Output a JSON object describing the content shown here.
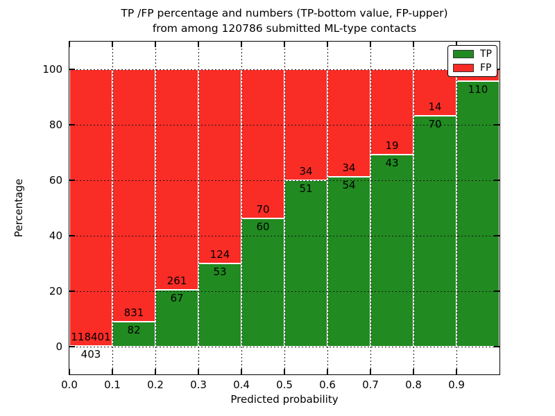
{
  "title": {
    "line1": "TP /FP percentage and numbers (TP-bottom value, FP-upper)",
    "line2": "from among 120786 submitted ML-type contacts"
  },
  "chart_data": {
    "type": "bar",
    "subtype": "percentage-stacked-histogram",
    "title": "TP /FP percentage and numbers (TP-bottom value, FP-upper) from among 120786 submitted ML-type contacts",
    "xlabel": "Predicted probability",
    "ylabel": "Percentage",
    "xlim": [
      0.0,
      1.0
    ],
    "ylim": [
      -10,
      110
    ],
    "x_ticks": [
      "0.0",
      "0.1",
      "0.2",
      "0.3",
      "0.4",
      "0.5",
      "0.6",
      "0.7",
      "0.8",
      "0.9"
    ],
    "y_ticks": [
      0,
      20,
      40,
      60,
      80,
      100
    ],
    "grid": "dotted, both axes",
    "legend": {
      "position": "upper right",
      "entries": [
        {
          "label": "TP",
          "color_key": "tp"
        },
        {
          "label": "FP",
          "color_key": "fp"
        }
      ]
    },
    "colors": {
      "tp": "#218a21",
      "fp": "#fa2c26"
    },
    "bins": [
      {
        "range": [
          0.0,
          0.1
        ],
        "tp": 403,
        "fp": 118401,
        "tp_pct": 0.34
      },
      {
        "range": [
          0.1,
          0.2
        ],
        "tp": 82,
        "fp": 831,
        "tp_pct": 8.98
      },
      {
        "range": [
          0.2,
          0.3
        ],
        "tp": 67,
        "fp": 261,
        "tp_pct": 20.43
      },
      {
        "range": [
          0.3,
          0.4
        ],
        "tp": 53,
        "fp": 124,
        "tp_pct": 29.94
      },
      {
        "range": [
          0.4,
          0.5
        ],
        "tp": 60,
        "fp": 70,
        "tp_pct": 46.15
      },
      {
        "range": [
          0.5,
          0.6
        ],
        "tp": 51,
        "fp": 34,
        "tp_pct": 60.0
      },
      {
        "range": [
          0.6,
          0.7
        ],
        "tp": 54,
        "fp": 34,
        "tp_pct": 61.36
      },
      {
        "range": [
          0.7,
          0.8
        ],
        "tp": 43,
        "fp": 19,
        "tp_pct": 69.35
      },
      {
        "range": [
          0.8,
          0.9
        ],
        "tp": 70,
        "fp": 14,
        "tp_pct": 83.33
      },
      {
        "range": [
          0.9,
          1.0
        ],
        "tp": 110,
        "fp": null,
        "tp_pct": 95.65
      }
    ],
    "notes": "FP count label of the 0.9-1.0 bin is hidden behind the legend box; TP label 403 of first bin is drawn below the 0 line."
  }
}
